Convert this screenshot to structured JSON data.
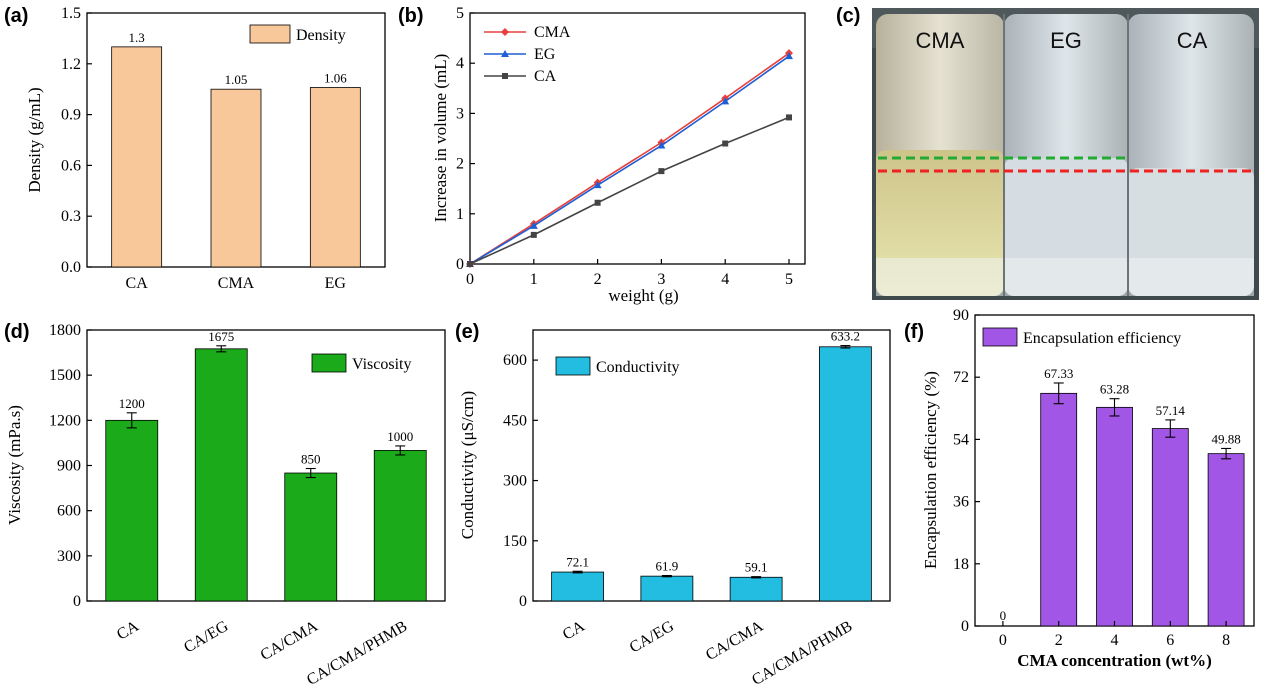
{
  "chart_data": [
    {
      "panel": "(a)",
      "type": "bar",
      "categories": [
        "CA",
        "CMA",
        "EG"
      ],
      "values": [
        1.3,
        1.05,
        1.06
      ],
      "value_labels": [
        "1.3",
        "1.05",
        "1.06"
      ],
      "title": "",
      "xlabel": "",
      "ylabel": "Density (g/mL)",
      "ylim": [
        0,
        1.5
      ],
      "yticks": [
        "0.0",
        "0.3",
        "0.6",
        "0.9",
        "1.2",
        "1.5"
      ],
      "legend": [
        "Density"
      ],
      "legend_position": "top-right",
      "color": "#f8c79a"
    },
    {
      "panel": "(b)",
      "type": "line",
      "x": [
        0,
        1,
        2,
        3,
        4,
        5
      ],
      "series": [
        {
          "name": "CMA",
          "values": [
            0,
            0.8,
            1.62,
            2.42,
            3.3,
            4.2
          ],
          "color": "#e8403c",
          "marker": "diamond"
        },
        {
          "name": "EG",
          "values": [
            0,
            0.76,
            1.57,
            2.36,
            3.24,
            4.14
          ],
          "color": "#1f5fd4",
          "marker": "triangle"
        },
        {
          "name": "CA",
          "values": [
            0,
            0.58,
            1.22,
            1.85,
            2.4,
            2.92
          ],
          "color": "#444444",
          "marker": "square"
        }
      ],
      "xlabel": "weight (g)",
      "ylabel": "Increase in volume (mL)",
      "xlim": [
        0,
        5
      ],
      "ylim": [
        0,
        5
      ],
      "xticks": [
        "0",
        "1",
        "2",
        "3",
        "4",
        "5"
      ],
      "yticks": [
        "0",
        "1",
        "2",
        "3",
        "4",
        "5"
      ],
      "legend_position": "top-left"
    },
    {
      "panel": "(d)",
      "type": "bar",
      "categories": [
        "CA",
        "CA/EG",
        "CA/CMA",
        "CA/CMA/PHMB"
      ],
      "values": [
        1200,
        1675,
        850,
        1000
      ],
      "errors": [
        50,
        20,
        30,
        30
      ],
      "value_labels": [
        "1200",
        "1675",
        "850",
        "1000"
      ],
      "xlabel": "",
      "ylabel": "Viscosity (mPa.s)",
      "ylim": [
        0,
        1800
      ],
      "yticks": [
        "0",
        "300",
        "600",
        "900",
        "1200",
        "1500",
        "1800"
      ],
      "legend": [
        "Viscosity"
      ],
      "legend_position": "top-right",
      "color": "#1aaa1a"
    },
    {
      "panel": "(e)",
      "type": "bar",
      "categories": [
        "CA",
        "CA/EG",
        "CA/CMA",
        "CA/CMA/PHMB"
      ],
      "values": [
        72.1,
        61.9,
        59.1,
        633.2
      ],
      "errors": [
        2,
        1.5,
        1.5,
        3
      ],
      "value_labels": [
        "72.1",
        "61.9",
        "59.1",
        "633.2"
      ],
      "xlabel": "",
      "ylabel": "Conductivity (μS/cm)",
      "ylim": [
        0,
        675
      ],
      "yticks": [
        "0",
        "150",
        "300",
        "450",
        "600"
      ],
      "ytick_values": [
        0,
        150,
        300,
        450,
        600
      ],
      "legend": [
        "Conductivity"
      ],
      "legend_position": "top-left",
      "color": "#22bde0"
    },
    {
      "panel": "(f)",
      "type": "bar",
      "categories": [
        "0",
        "2",
        "4",
        "6",
        "8"
      ],
      "values": [
        0,
        67.33,
        63.28,
        57.14,
        49.88
      ],
      "errors": [
        0,
        3,
        2.5,
        2.5,
        1.5
      ],
      "value_labels": [
        "0",
        "67.33",
        "63.28",
        "57.14",
        "49.88"
      ],
      "xlabel": "CMA concentration (wt%)",
      "ylabel": "Encapsulation efficiency (%)",
      "ylim": [
        0,
        90
      ],
      "yticks": [
        "0",
        "18",
        "36",
        "54",
        "72",
        "90"
      ],
      "legend": [
        "Encapsulation efficiency"
      ],
      "legend_position": "top-left",
      "color": "#a256e6"
    }
  ],
  "photo": {
    "panel": "(c)",
    "labels": [
      "CMA",
      "EG",
      "CA"
    ],
    "dashed_line_colors": [
      "#22aa33",
      "#ee2222"
    ]
  }
}
